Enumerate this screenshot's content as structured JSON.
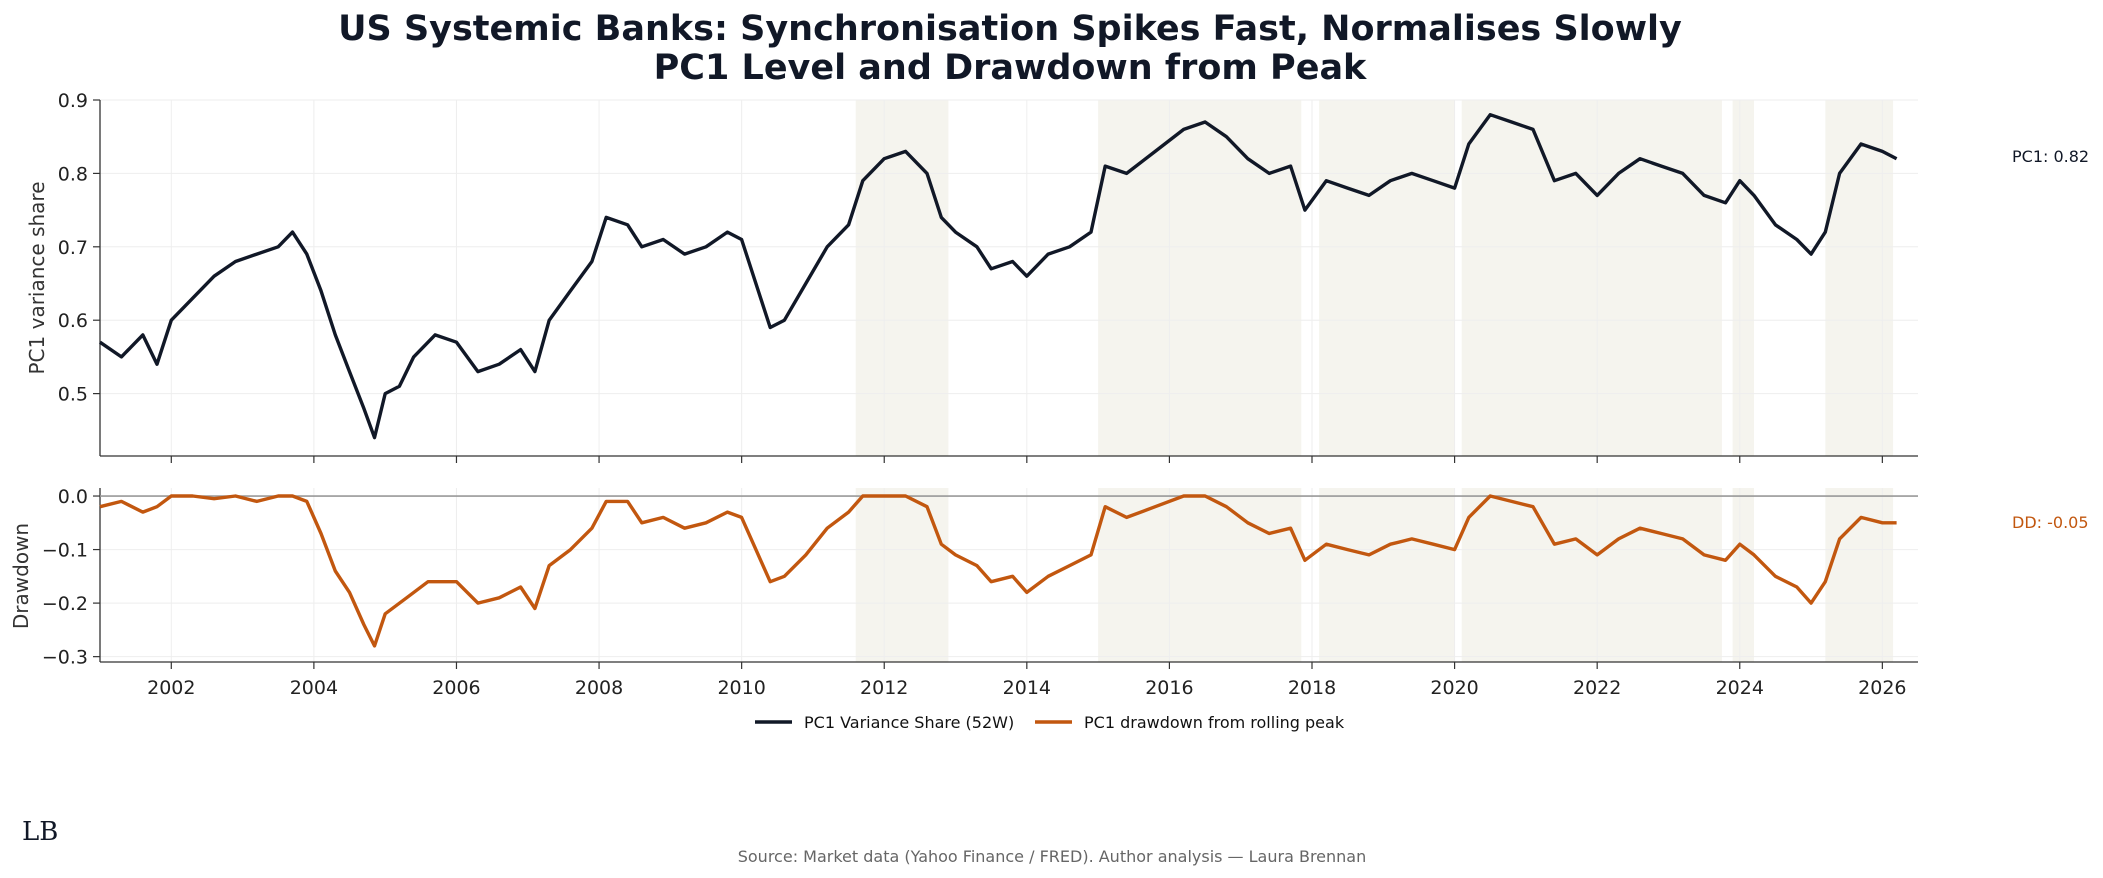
{
  "chart_data": {
    "type": "line",
    "title_line1": "US Systemic Banks: Synchronisation Spikes Fast, Normalises Slowly",
    "title_line2": "PC1 Level and Drawdown from Peak",
    "xlim": [
      2001.0,
      2026.5
    ],
    "x_ticks": [
      "2002",
      "2004",
      "2006",
      "2008",
      "2010",
      "2012",
      "2014",
      "2016",
      "2018",
      "2020",
      "2022",
      "2024",
      "2026"
    ],
    "shaded_regions": [
      [
        2011.6,
        2012.9
      ],
      [
        2015.0,
        2017.85
      ],
      [
        2018.1,
        2020.0
      ],
      [
        2020.1,
        2023.75
      ],
      [
        2023.9,
        2024.2
      ],
      [
        2025.2,
        2026.15
      ]
    ],
    "top_panel": {
      "ylabel": "PC1 variance share",
      "ylim": [
        0.415,
        0.9
      ],
      "y_ticks": [
        "0.5",
        "0.6",
        "0.7",
        "0.8",
        "0.9"
      ],
      "series": {
        "name": "PC1 Variance Share (52W)",
        "color": "#111827",
        "points": [
          [
            2001.0,
            0.57
          ],
          [
            2001.3,
            0.55
          ],
          [
            2001.6,
            0.58
          ],
          [
            2001.8,
            0.54
          ],
          [
            2002.0,
            0.6
          ],
          [
            2002.3,
            0.63
          ],
          [
            2002.6,
            0.66
          ],
          [
            2002.9,
            0.68
          ],
          [
            2003.2,
            0.69
          ],
          [
            2003.5,
            0.7
          ],
          [
            2003.7,
            0.72
          ],
          [
            2003.9,
            0.69
          ],
          [
            2004.1,
            0.64
          ],
          [
            2004.3,
            0.58
          ],
          [
            2004.5,
            0.53
          ],
          [
            2004.7,
            0.48
          ],
          [
            2004.85,
            0.44
          ],
          [
            2005.0,
            0.5
          ],
          [
            2005.2,
            0.51
          ],
          [
            2005.4,
            0.55
          ],
          [
            2005.7,
            0.58
          ],
          [
            2006.0,
            0.57
          ],
          [
            2006.3,
            0.53
          ],
          [
            2006.6,
            0.54
          ],
          [
            2006.9,
            0.56
          ],
          [
            2007.1,
            0.53
          ],
          [
            2007.3,
            0.6
          ],
          [
            2007.6,
            0.64
          ],
          [
            2007.9,
            0.68
          ],
          [
            2008.1,
            0.74
          ],
          [
            2008.4,
            0.73
          ],
          [
            2008.6,
            0.7
          ],
          [
            2008.9,
            0.71
          ],
          [
            2009.2,
            0.69
          ],
          [
            2009.5,
            0.7
          ],
          [
            2009.8,
            0.72
          ],
          [
            2010.0,
            0.71
          ],
          [
            2010.2,
            0.65
          ],
          [
            2010.4,
            0.59
          ],
          [
            2010.6,
            0.6
          ],
          [
            2010.9,
            0.65
          ],
          [
            2011.2,
            0.7
          ],
          [
            2011.5,
            0.73
          ],
          [
            2011.7,
            0.79
          ],
          [
            2012.0,
            0.82
          ],
          [
            2012.3,
            0.83
          ],
          [
            2012.6,
            0.8
          ],
          [
            2012.8,
            0.74
          ],
          [
            2013.0,
            0.72
          ],
          [
            2013.3,
            0.7
          ],
          [
            2013.5,
            0.67
          ],
          [
            2013.8,
            0.68
          ],
          [
            2014.0,
            0.66
          ],
          [
            2014.3,
            0.69
          ],
          [
            2014.6,
            0.7
          ],
          [
            2014.9,
            0.72
          ],
          [
            2015.1,
            0.81
          ],
          [
            2015.4,
            0.8
          ],
          [
            2015.8,
            0.83
          ],
          [
            2016.2,
            0.86
          ],
          [
            2016.5,
            0.87
          ],
          [
            2016.8,
            0.85
          ],
          [
            2017.1,
            0.82
          ],
          [
            2017.4,
            0.8
          ],
          [
            2017.7,
            0.81
          ],
          [
            2017.9,
            0.75
          ],
          [
            2018.2,
            0.79
          ],
          [
            2018.5,
            0.78
          ],
          [
            2018.8,
            0.77
          ],
          [
            2019.1,
            0.79
          ],
          [
            2019.4,
            0.8
          ],
          [
            2019.7,
            0.79
          ],
          [
            2020.0,
            0.78
          ],
          [
            2020.2,
            0.84
          ],
          [
            2020.5,
            0.88
          ],
          [
            2020.8,
            0.87
          ],
          [
            2021.1,
            0.86
          ],
          [
            2021.4,
            0.79
          ],
          [
            2021.7,
            0.8
          ],
          [
            2022.0,
            0.77
          ],
          [
            2022.3,
            0.8
          ],
          [
            2022.6,
            0.82
          ],
          [
            2022.9,
            0.81
          ],
          [
            2023.2,
            0.8
          ],
          [
            2023.5,
            0.77
          ],
          [
            2023.8,
            0.76
          ],
          [
            2024.0,
            0.79
          ],
          [
            2024.2,
            0.77
          ],
          [
            2024.5,
            0.73
          ],
          [
            2024.8,
            0.71
          ],
          [
            2025.0,
            0.69
          ],
          [
            2025.2,
            0.72
          ],
          [
            2025.4,
            0.8
          ],
          [
            2025.7,
            0.84
          ],
          [
            2026.0,
            0.83
          ],
          [
            2026.2,
            0.82
          ]
        ]
      },
      "last_label": "PC1: 0.82"
    },
    "bottom_panel": {
      "ylabel": "Drawdown",
      "ylim": [
        -0.31,
        0.015
      ],
      "y_ticks": [
        "0.0",
        "−0.1",
        "−0.2",
        "−0.3"
      ],
      "series": {
        "name": "PC1 drawdown from rolling peak",
        "color": "#c2570f",
        "points": [
          [
            2001.0,
            -0.02
          ],
          [
            2001.3,
            -0.01
          ],
          [
            2001.6,
            -0.03
          ],
          [
            2001.8,
            -0.02
          ],
          [
            2002.0,
            0.0
          ],
          [
            2002.3,
            0.0
          ],
          [
            2002.6,
            -0.005
          ],
          [
            2002.9,
            0.0
          ],
          [
            2003.2,
            -0.01
          ],
          [
            2003.5,
            0.0
          ],
          [
            2003.7,
            0.0
          ],
          [
            2003.9,
            -0.01
          ],
          [
            2004.1,
            -0.07
          ],
          [
            2004.3,
            -0.14
          ],
          [
            2004.5,
            -0.18
          ],
          [
            2004.7,
            -0.24
          ],
          [
            2004.85,
            -0.28
          ],
          [
            2005.0,
            -0.22
          ],
          [
            2005.3,
            -0.19
          ],
          [
            2005.6,
            -0.16
          ],
          [
            2006.0,
            -0.16
          ],
          [
            2006.3,
            -0.2
          ],
          [
            2006.6,
            -0.19
          ],
          [
            2006.9,
            -0.17
          ],
          [
            2007.1,
            -0.21
          ],
          [
            2007.3,
            -0.13
          ],
          [
            2007.6,
            -0.1
          ],
          [
            2007.9,
            -0.06
          ],
          [
            2008.1,
            -0.01
          ],
          [
            2008.4,
            -0.01
          ],
          [
            2008.6,
            -0.05
          ],
          [
            2008.9,
            -0.04
          ],
          [
            2009.2,
            -0.06
          ],
          [
            2009.5,
            -0.05
          ],
          [
            2009.8,
            -0.03
          ],
          [
            2010.0,
            -0.04
          ],
          [
            2010.2,
            -0.1
          ],
          [
            2010.4,
            -0.16
          ],
          [
            2010.6,
            -0.15
          ],
          [
            2010.9,
            -0.11
          ],
          [
            2011.2,
            -0.06
          ],
          [
            2011.5,
            -0.03
          ],
          [
            2011.7,
            0.0
          ],
          [
            2012.0,
            0.0
          ],
          [
            2012.3,
            0.0
          ],
          [
            2012.6,
            -0.02
          ],
          [
            2012.8,
            -0.09
          ],
          [
            2013.0,
            -0.11
          ],
          [
            2013.3,
            -0.13
          ],
          [
            2013.5,
            -0.16
          ],
          [
            2013.8,
            -0.15
          ],
          [
            2014.0,
            -0.18
          ],
          [
            2014.3,
            -0.15
          ],
          [
            2014.6,
            -0.13
          ],
          [
            2014.9,
            -0.11
          ],
          [
            2015.1,
            -0.02
          ],
          [
            2015.4,
            -0.04
          ],
          [
            2015.8,
            -0.02
          ],
          [
            2016.2,
            0.0
          ],
          [
            2016.5,
            0.0
          ],
          [
            2016.8,
            -0.02
          ],
          [
            2017.1,
            -0.05
          ],
          [
            2017.4,
            -0.07
          ],
          [
            2017.7,
            -0.06
          ],
          [
            2017.9,
            -0.12
          ],
          [
            2018.2,
            -0.09
          ],
          [
            2018.5,
            -0.1
          ],
          [
            2018.8,
            -0.11
          ],
          [
            2019.1,
            -0.09
          ],
          [
            2019.4,
            -0.08
          ],
          [
            2019.7,
            -0.09
          ],
          [
            2020.0,
            -0.1
          ],
          [
            2020.2,
            -0.04
          ],
          [
            2020.5,
            0.0
          ],
          [
            2020.8,
            -0.01
          ],
          [
            2021.1,
            -0.02
          ],
          [
            2021.4,
            -0.09
          ],
          [
            2021.7,
            -0.08
          ],
          [
            2022.0,
            -0.11
          ],
          [
            2022.3,
            -0.08
          ],
          [
            2022.6,
            -0.06
          ],
          [
            2022.9,
            -0.07
          ],
          [
            2023.2,
            -0.08
          ],
          [
            2023.5,
            -0.11
          ],
          [
            2023.8,
            -0.12
          ],
          [
            2024.0,
            -0.09
          ],
          [
            2024.2,
            -0.11
          ],
          [
            2024.5,
            -0.15
          ],
          [
            2024.8,
            -0.17
          ],
          [
            2025.0,
            -0.2
          ],
          [
            2025.2,
            -0.16
          ],
          [
            2025.4,
            -0.08
          ],
          [
            2025.7,
            -0.04
          ],
          [
            2026.0,
            -0.05
          ],
          [
            2026.2,
            -0.05
          ]
        ]
      },
      "last_label": "DD: -0.05"
    },
    "legend": [
      {
        "label": "PC1 Variance Share (52W)",
        "color": "#111827"
      },
      {
        "label": "PC1 drawdown from rolling peak",
        "color": "#c2570f"
      }
    ],
    "shade_color": "#f5f4ee"
  },
  "footer": {
    "source": "Source: Market data (Yahoo Finance / FRED). Author analysis — Laura Brennan",
    "logo": "LB"
  }
}
